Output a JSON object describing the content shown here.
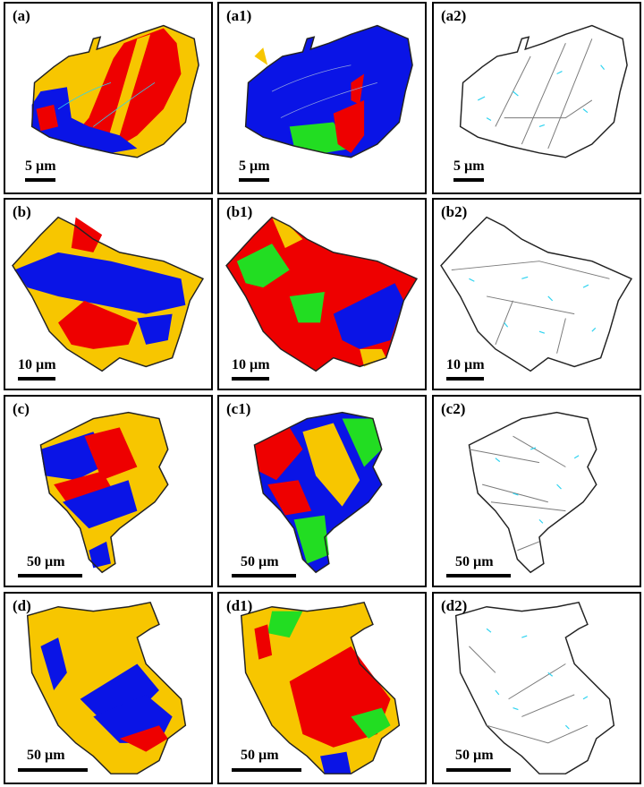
{
  "colors": {
    "red": "#ee0000",
    "blue": "#0a14e6",
    "yellow": "#f7c600",
    "green": "#22dd22",
    "cyan": "#2ed3f0",
    "gray": "#7a7a7a",
    "outline": "#222222"
  },
  "panels": [
    {
      "id": "a",
      "label": "(a)",
      "scale": "5 µm",
      "type": "map-ry"
    },
    {
      "id": "a1",
      "label": "(a1)",
      "scale": "5 µm",
      "type": "map-bgr"
    },
    {
      "id": "a2",
      "label": "(a2)",
      "scale": "5 µm",
      "type": "boundaries"
    },
    {
      "id": "b",
      "label": "(b)",
      "scale": "10 µm",
      "type": "map-ry"
    },
    {
      "id": "b1",
      "label": "(b1)",
      "scale": "10 µm",
      "type": "map-bgr"
    },
    {
      "id": "b2",
      "label": "(b2)",
      "scale": "10 µm",
      "type": "boundaries"
    },
    {
      "id": "c",
      "label": "(c)",
      "scale": "50 µm",
      "type": "map-ry"
    },
    {
      "id": "c1",
      "label": "(c1)",
      "scale": "50 µm",
      "type": "map-bgr"
    },
    {
      "id": "c2",
      "label": "(c2)",
      "scale": "50 µm",
      "type": "boundaries"
    },
    {
      "id": "d",
      "label": "(d)",
      "scale": "50 µm",
      "type": "map-ry"
    },
    {
      "id": "d1",
      "label": "(d1)",
      "scale": "50 µm",
      "type": "map-bgr"
    },
    {
      "id": "d2",
      "label": "(d2)",
      "scale": "50 µm",
      "type": "boundaries"
    }
  ]
}
